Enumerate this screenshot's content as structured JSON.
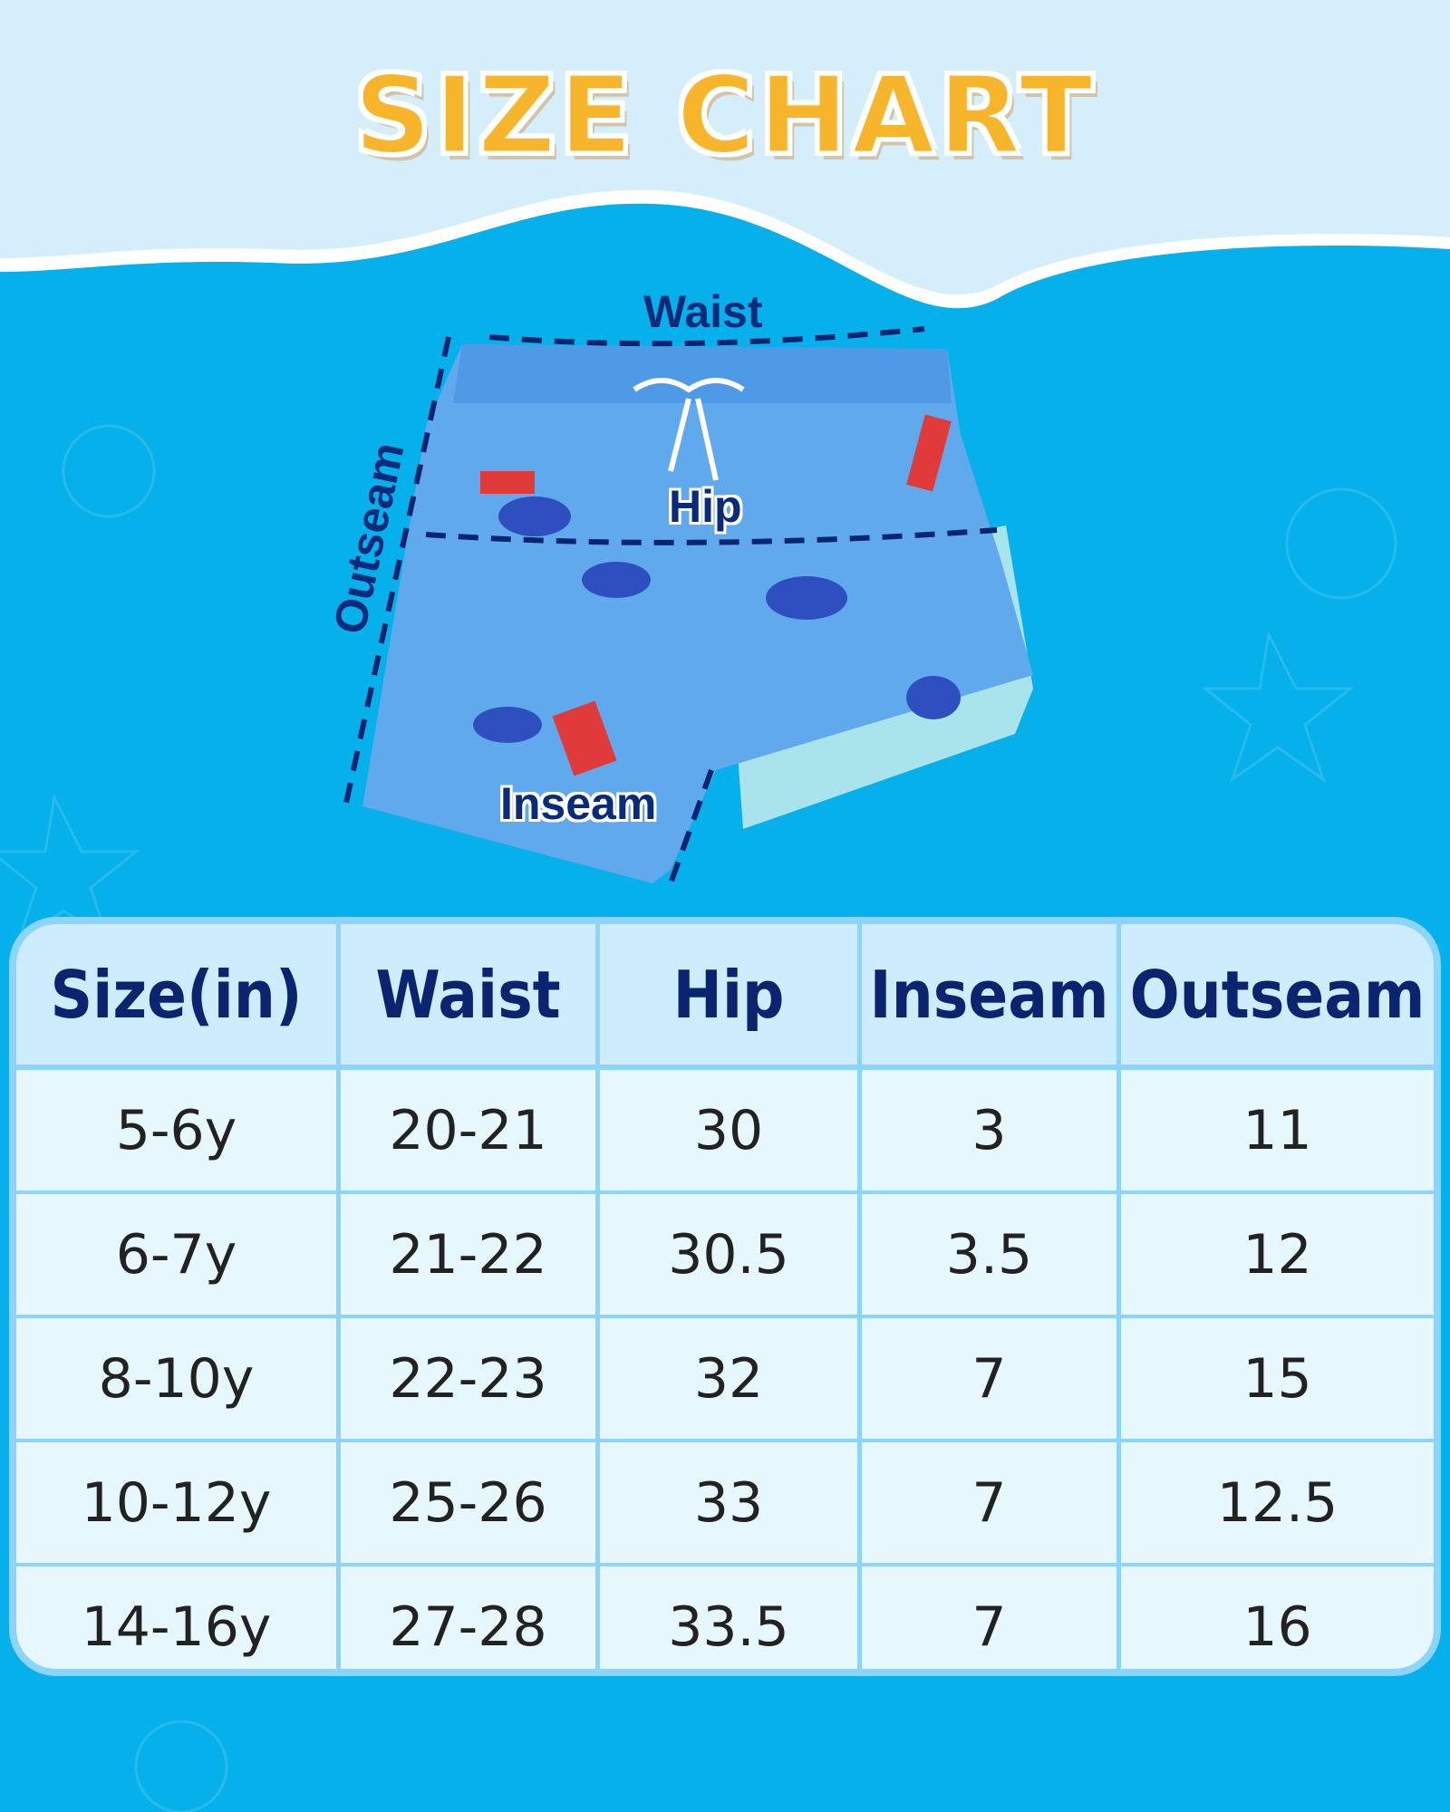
{
  "title": "SIZE CHART",
  "diagram_labels": {
    "waist": "Waist",
    "hip": "Hip",
    "inseam": "Inseam",
    "outseam": "Outseam"
  },
  "colors": {
    "background": "#06b0ea",
    "title": "#f7b52c",
    "header_text": "#0a2470",
    "table_border": "#8dd4fb"
  },
  "table": {
    "headers": [
      "Size(in)",
      "Waist",
      "Hip",
      "Inseam",
      "Outseam"
    ],
    "rows": [
      [
        "5-6y",
        "20-21",
        "30",
        "3",
        "11"
      ],
      [
        "6-7y",
        "21-22",
        "30.5",
        "3.5",
        "12"
      ],
      [
        "8-10y",
        "22-23",
        "32",
        "7",
        "15"
      ],
      [
        "10-12y",
        "25-26",
        "33",
        "7",
        "12.5"
      ],
      [
        "14-16y",
        "27-28",
        "33.5",
        "7",
        "16"
      ]
    ]
  }
}
